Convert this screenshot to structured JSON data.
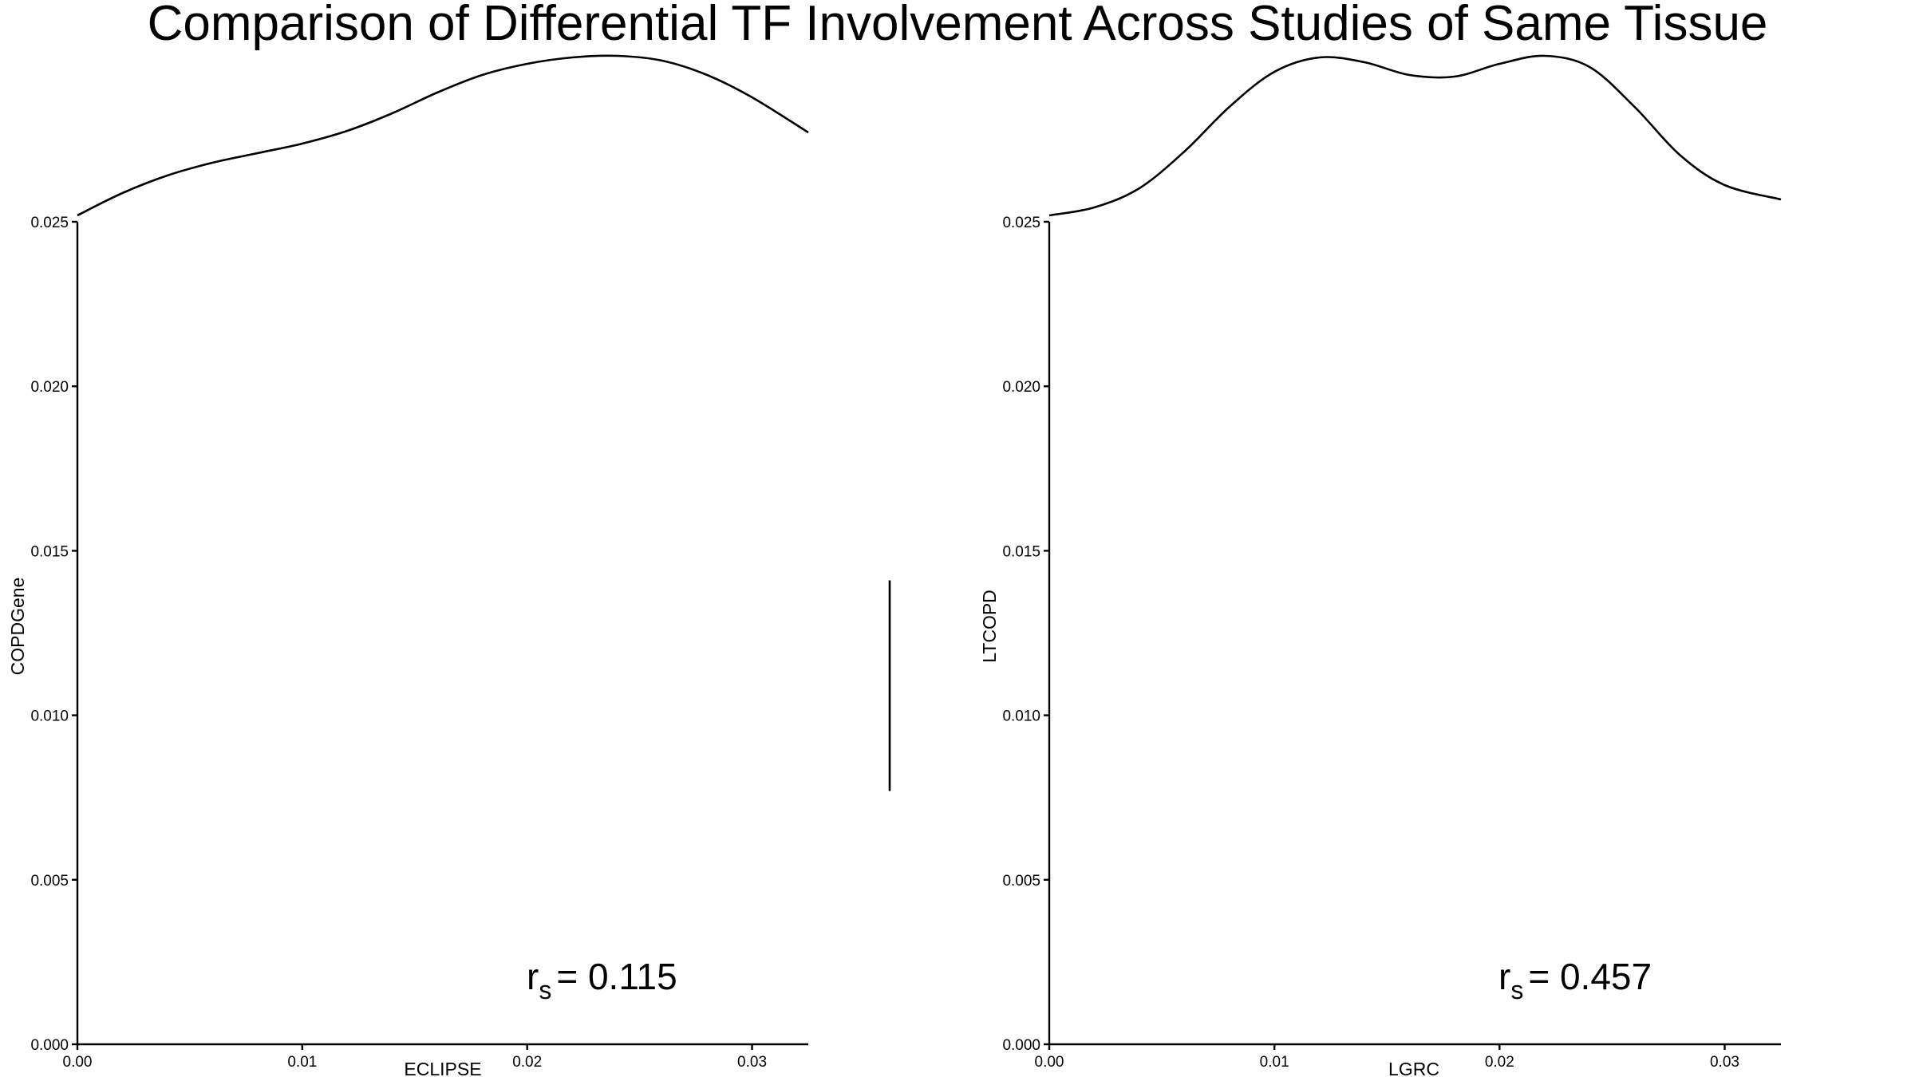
{
  "title": "Comparison of Differential TF Involvement Across Studies of Same Tissue",
  "chart_data": [
    {
      "type": "scatter",
      "xlabel": "ECLIPSE",
      "ylabel": "COPDGene",
      "xlim": [
        0,
        0.0325
      ],
      "ylim": [
        0,
        0.025
      ],
      "x_ticks": [
        "0.00",
        "0.01",
        "0.02",
        "0.03"
      ],
      "y_ticks": [
        "0.000",
        "0.005",
        "0.010",
        "0.015",
        "0.020",
        "0.025"
      ],
      "x_tick_values": [
        0,
        0.01,
        0.02,
        0.03
      ],
      "y_tick_values": [
        0,
        0.005,
        0.01,
        0.015,
        0.02,
        0.025
      ],
      "points": [],
      "marginal_density_x": {
        "x": [
          0,
          0.002,
          0.004,
          0.006,
          0.008,
          0.01,
          0.012,
          0.014,
          0.016,
          0.018,
          0.02,
          0.022,
          0.024,
          0.026,
          0.028,
          0.03,
          0.0325
        ],
        "density": [
          0.0,
          0.14,
          0.25,
          0.33,
          0.39,
          0.45,
          0.53,
          0.64,
          0.77,
          0.88,
          0.95,
          0.99,
          1.0,
          0.97,
          0.88,
          0.74,
          0.52
        ]
      },
      "annotation": {
        "label": "r",
        "subscript": "s",
        "value": "= 0.115"
      }
    },
    {
      "type": "scatter",
      "xlabel": "LGRC",
      "ylabel": "LTCOPD",
      "xlim": [
        0,
        0.0325
      ],
      "ylim": [
        0,
        0.025
      ],
      "x_ticks": [
        "0.00",
        "0.01",
        "0.02",
        "0.03"
      ],
      "y_ticks": [
        "0.000",
        "0.005",
        "0.010",
        "0.015",
        "0.020",
        "0.025"
      ],
      "x_tick_values": [
        0,
        0.01,
        0.02,
        0.03
      ],
      "y_tick_values": [
        0,
        0.005,
        0.01,
        0.015,
        0.02,
        0.025
      ],
      "points": [],
      "marginal_density_x": {
        "x": [
          0,
          0.002,
          0.004,
          0.006,
          0.008,
          0.01,
          0.012,
          0.014,
          0.016,
          0.018,
          0.02,
          0.022,
          0.024,
          0.026,
          0.028,
          0.03,
          0.0325
        ],
        "density": [
          0.0,
          0.05,
          0.17,
          0.4,
          0.68,
          0.9,
          0.99,
          0.96,
          0.88,
          0.87,
          0.95,
          1.0,
          0.93,
          0.68,
          0.38,
          0.19,
          0.1
        ]
      },
      "annotation": {
        "label": "r",
        "subscript": "s",
        "value": "= 0.457"
      }
    }
  ],
  "marginal_density_y_left": {
    "y_range": [
      0.0077,
      0.0141
    ],
    "note_visible": false
  }
}
